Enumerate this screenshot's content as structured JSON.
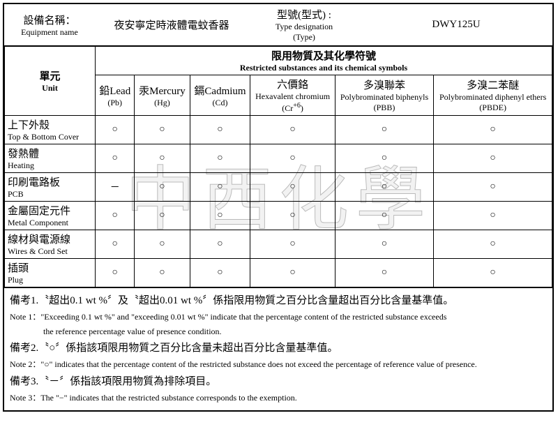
{
  "header": {
    "equip_label_zh": "設備名稱：",
    "equip_label_en": "Equipment name",
    "equip_value": "夜安寧定時液體電蚊香器",
    "type_label_zh": "型號(型式) :",
    "type_label_en1": "Type designation",
    "type_label_en2": "(Type)",
    "type_value": "DWY125U"
  },
  "table": {
    "unit_zh": "單元",
    "unit_en": "Unit",
    "restricted_zh": "限用物質及其化學符號",
    "restricted_en": "Restricted substances and its chemical symbols",
    "columns": [
      {
        "zh": "鉛Lead",
        "sym": "(Pb)"
      },
      {
        "zh": "汞Mercury",
        "sym": "(Hg)"
      },
      {
        "zh": "鎘Cadmium",
        "sym": "(Cd)"
      },
      {
        "zh": "六價鉻",
        "en": "Hexavalent chromium",
        "sym": "(Cr+6)"
      },
      {
        "zh": "多溴聯苯",
        "en": "Polybrominated biphenyls",
        "sym": "(PBB)"
      },
      {
        "zh": "多溴二苯醚",
        "en": "Polybrominated diphenyl ethers",
        "sym": "(PBDE)"
      }
    ],
    "rows": [
      {
        "zh": "上下外殼",
        "en": "Top & Bottom Cover",
        "v": [
          "○",
          "○",
          "○",
          "○",
          "○",
          "○"
        ]
      },
      {
        "zh": "發熱體",
        "en": "Heating",
        "v": [
          "○",
          "○",
          "○",
          "○",
          "○",
          "○"
        ]
      },
      {
        "zh": "印刷電路板",
        "en": "PCB",
        "v": [
          "－",
          "○",
          "○",
          "○",
          "○",
          "○"
        ]
      },
      {
        "zh": "金屬固定元件",
        "en": "Metal Component",
        "v": [
          "○",
          "○",
          "○",
          "○",
          "○",
          "○"
        ]
      },
      {
        "zh": "線材與電源線",
        "en": "Wires & Cord Set",
        "v": [
          "○",
          "○",
          "○",
          "○",
          "○",
          "○"
        ]
      },
      {
        "zh": "插頭",
        "en": "Plug",
        "v": [
          "○",
          "○",
          "○",
          "○",
          "○",
          "○"
        ]
      }
    ]
  },
  "notes": [
    {
      "zh": "備考1.〝超出0.1 wt %〞及〝超出0.01 wt %〞係指限用物質之百分比含量超出百分比含量基準值。",
      "en": "Note 1：\"Exceeding 0.1 wt %\" and \"exceeding 0.01 wt %\" indicate that the percentage content of the restricted substance exceeds",
      "en2": "the reference percentage value of presence condition."
    },
    {
      "zh": "備考2.〝○〞係指該項限用物質之百分比含量未超出百分比含量基準值。",
      "en": "Note 2：\"○\" indicates that the percentage content of the restricted substance does not exceed the percentage of reference value of presence."
    },
    {
      "zh": "備考3.〝－〞係指該項限用物質為排除項目。",
      "en": "Note 3：The \"−\" indicates that the restricted substance corresponds to the exemption."
    }
  ],
  "watermark": "中西化學"
}
